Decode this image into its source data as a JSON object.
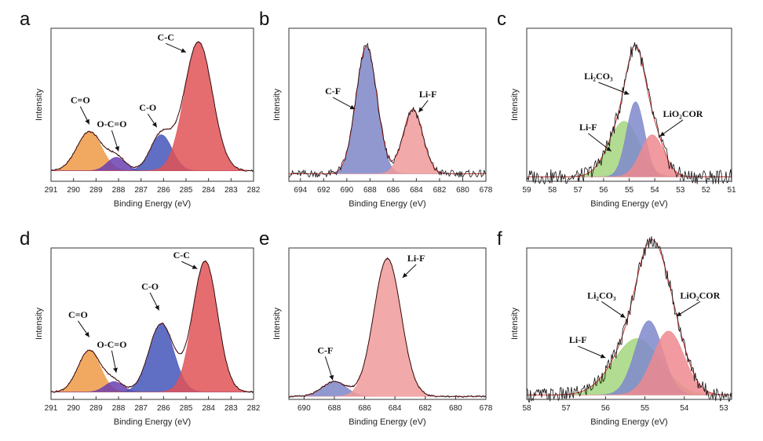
{
  "chart_data": [
    {
      "panel": "a",
      "type": "area",
      "xlabel": "Binding Energy (eV)",
      "ylabel": "Intensity",
      "xlim": [
        291,
        282
      ],
      "ylim": [
        0,
        1.02
      ],
      "xticks": [
        "291",
        "290",
        "289",
        "288",
        "287",
        "286",
        "285",
        "284",
        "283",
        "282"
      ],
      "baseline": 0.07,
      "peaks": [
        {
          "name": "C=O",
          "center": 289.3,
          "height": 0.26,
          "sigma": 0.55,
          "color": "#ee9a45"
        },
        {
          "name": "O-C=O",
          "center": 288.1,
          "height": 0.09,
          "sigma": 0.4,
          "color": "#6a3fb0"
        },
        {
          "name": "C-O",
          "center": 286.1,
          "height": 0.24,
          "sigma": 0.48,
          "color": "#4455b8"
        },
        {
          "name": "C-C",
          "center": 284.45,
          "height": 0.86,
          "sigma": 0.62,
          "color": "#e05457"
        }
      ],
      "labels": [
        {
          "text": "C=O",
          "x": 289.7,
          "y": 0.52,
          "ax": 289.3,
          "ay": 0.38
        },
        {
          "text": "O-C=O",
          "x": 288.3,
          "y": 0.36,
          "ax": 288.0,
          "ay": 0.2
        },
        {
          "text": "C-O",
          "x": 286.7,
          "y": 0.47,
          "ax": 286.3,
          "ay": 0.36
        },
        {
          "text": "C-C",
          "x": 285.9,
          "y": 0.94,
          "ax": 285.0,
          "ay": 0.86
        }
      ]
    },
    {
      "panel": "b",
      "type": "area",
      "xlabel": "Binding Energy (eV)",
      "ylabel": "Intensity",
      "xlim": [
        695,
        678
      ],
      "ylim": [
        0,
        1.02
      ],
      "xticks": [
        "694",
        "692",
        "690",
        "688",
        "686",
        "684",
        "682",
        "680",
        "678"
      ],
      "baseline": 0.05,
      "peaks": [
        {
          "name": "C-F",
          "center": 688.3,
          "height": 0.85,
          "sigma": 0.9,
          "color": "#7e86c8"
        },
        {
          "name": "Li-F",
          "center": 684.3,
          "height": 0.43,
          "sigma": 0.85,
          "color": "#f09a9a"
        }
      ],
      "labels": [
        {
          "text": "C-F",
          "x": 691.2,
          "y": 0.58,
          "ax": 689.3,
          "ay": 0.48
        },
        {
          "text": "Li-F",
          "x": 683.0,
          "y": 0.56,
          "ax": 683.8,
          "ay": 0.46
        }
      ]
    },
    {
      "panel": "c",
      "type": "area",
      "xlabel": "Binding Energy (eV)",
      "ylabel": "Intensity",
      "xlim": [
        59,
        51
      ],
      "ylim": [
        0,
        1.02
      ],
      "xticks": [
        "59",
        "58",
        "57",
        "56",
        "55",
        "54",
        "53",
        "52",
        "51"
      ],
      "baseline": 0.03,
      "peaks": [
        {
          "name": "Li-F",
          "center": 55.2,
          "height": 0.37,
          "sigma": 0.6,
          "color": "#a5d67e"
        },
        {
          "name": "Li2CO3",
          "center": 54.75,
          "height": 0.5,
          "sigma": 0.35,
          "color": "#7f88cc"
        },
        {
          "name": "LiO2COR",
          "center": 54.1,
          "height": 0.28,
          "sigma": 0.45,
          "color": "#ef8a8f"
        }
      ],
      "labels": [
        {
          "text": "Li₂CO₃",
          "x": 56.2,
          "y": 0.68,
          "ax": 55.0,
          "ay": 0.58
        },
        {
          "text": "Li-F",
          "x": 56.6,
          "y": 0.34,
          "ax": 55.7,
          "ay": 0.2
        },
        {
          "text": "LiO₂COR",
          "x": 52.9,
          "y": 0.43,
          "ax": 53.8,
          "ay": 0.3
        }
      ]
    },
    {
      "panel": "d",
      "type": "area",
      "xlabel": "Binding Energy (eV)",
      "ylabel": "Intensity",
      "xlim": [
        291,
        282
      ],
      "ylim": [
        0,
        1.02
      ],
      "xticks": [
        "291",
        "290",
        "289",
        "288",
        "287",
        "286",
        "285",
        "284",
        "283",
        "282"
      ],
      "baseline": 0.05,
      "peaks": [
        {
          "name": "C=O",
          "center": 289.3,
          "height": 0.28,
          "sigma": 0.5,
          "color": "#ee9a45"
        },
        {
          "name": "O-C=O",
          "center": 288.2,
          "height": 0.07,
          "sigma": 0.4,
          "color": "#6a3fb0"
        },
        {
          "name": "C-O",
          "center": 286.1,
          "height": 0.46,
          "sigma": 0.55,
          "color": "#4455b8"
        },
        {
          "name": "C-C",
          "center": 284.15,
          "height": 0.88,
          "sigma": 0.55,
          "color": "#e05457"
        }
      ],
      "labels": [
        {
          "text": "C=O",
          "x": 289.8,
          "y": 0.55,
          "ax": 289.3,
          "ay": 0.42
        },
        {
          "text": "O-C=O",
          "x": 288.3,
          "y": 0.35,
          "ax": 288.1,
          "ay": 0.18
        },
        {
          "text": "C-O",
          "x": 286.6,
          "y": 0.74,
          "ax": 286.2,
          "ay": 0.6
        },
        {
          "text": "C-C",
          "x": 285.2,
          "y": 0.95,
          "ax": 284.5,
          "ay": 0.88
        }
      ]
    },
    {
      "panel": "e",
      "type": "area",
      "xlabel": "Binding Energy (eV)",
      "ylabel": "Intensity",
      "xlim": [
        691,
        678
      ],
      "ylim": [
        0,
        1.02
      ],
      "xticks": [
        "690",
        "688",
        "686",
        "684",
        "682",
        "680",
        "678"
      ],
      "baseline": 0.02,
      "peaks": [
        {
          "name": "C-F",
          "center": 688.0,
          "height": 0.1,
          "sigma": 0.8,
          "color": "#7e86c8"
        },
        {
          "name": "Li-F",
          "center": 684.5,
          "height": 0.93,
          "sigma": 0.9,
          "color": "#f09a9a"
        }
      ],
      "labels": [
        {
          "text": "C-F",
          "x": 688.6,
          "y": 0.31,
          "ax": 688.1,
          "ay": 0.13
        },
        {
          "text": "Li-F",
          "x": 682.6,
          "y": 0.93,
          "ax": 683.5,
          "ay": 0.82
        }
      ]
    },
    {
      "panel": "f",
      "type": "area",
      "xlabel": "Binding Energy (eV)",
      "ylabel": "Intensity",
      "xlim": [
        58,
        52.8
      ],
      "ylim": [
        0,
        1.02
      ],
      "xticks": [
        "58",
        "57",
        "56",
        "55",
        "54",
        "53"
      ],
      "baseline": 0.03,
      "peaks": [
        {
          "name": "Li-F",
          "center": 55.2,
          "height": 0.38,
          "sigma": 0.6,
          "color": "#a5d67e"
        },
        {
          "name": "Li2CO3",
          "center": 54.9,
          "height": 0.5,
          "sigma": 0.35,
          "color": "#7f88cc"
        },
        {
          "name": "LiO2COR",
          "center": 54.4,
          "height": 0.43,
          "sigma": 0.4,
          "color": "#ef8a8f"
        }
      ],
      "labels": [
        {
          "text": "Li₂CO₃",
          "x": 56.1,
          "y": 0.68,
          "ax": 55.5,
          "ay": 0.55
        },
        {
          "text": "Li-F",
          "x": 56.7,
          "y": 0.38,
          "ax": 56.0,
          "ay": 0.28
        },
        {
          "text": "LiO₂COR",
          "x": 53.6,
          "y": 0.68,
          "ax": 54.2,
          "ay": 0.56
        }
      ]
    }
  ]
}
